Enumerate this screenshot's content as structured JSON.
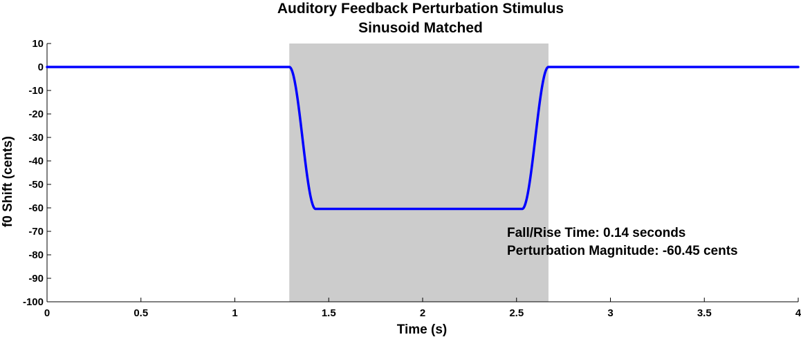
{
  "chart_data": {
    "type": "line",
    "title": "Auditory Feedback Perturbation Stimulus",
    "subtitle": "Sinusoid Matched",
    "xlabel": "Time (s)",
    "ylabel": "f0 Shift (cents)",
    "xlim": [
      0,
      4
    ],
    "ylim": [
      -100,
      10
    ],
    "xticks": [
      0,
      0.5,
      1,
      1.5,
      2,
      2.5,
      3,
      3.5,
      4
    ],
    "xtick_labels": [
      "0",
      "0.5",
      "1",
      "1.5",
      "2",
      "2.5",
      "3",
      "3.5",
      "4"
    ],
    "yticks": [
      10,
      0,
      -10,
      -20,
      -30,
      -40,
      -50,
      -60,
      -70,
      -80,
      -90,
      -100
    ],
    "ytick_labels": [
      "10",
      "0",
      "-10",
      "-20",
      "-30",
      "-40",
      "-50",
      "-60",
      "-70",
      "-80",
      "-90",
      "-100"
    ],
    "grid": false,
    "shaded_region": {
      "x_start": 1.29,
      "x_end": 2.67,
      "color": "#cccccc"
    },
    "series": [
      {
        "color": "#0000ff",
        "baseline": 0,
        "magnitude": -60.45,
        "onset": 1.29,
        "fall_rise_time": 0.14,
        "offset_end": 2.67
      }
    ],
    "annotations": [
      "Fall/Rise Time: 0.14 seconds",
      "Perturbation Magnitude: -60.45 cents"
    ]
  }
}
